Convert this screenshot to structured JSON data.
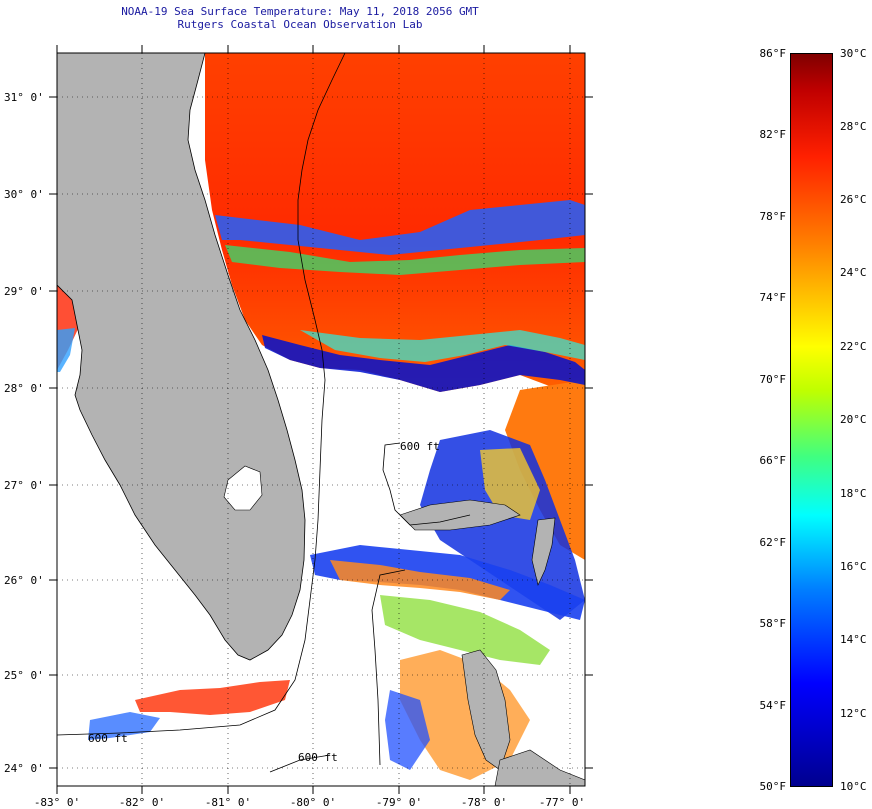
{
  "title": {
    "line1": "NOAA-19 Sea Surface Temperature:  May 11, 2018 2056 GMT",
    "line2": "Rutgers Coastal Ocean Observation Lab"
  },
  "map": {
    "lat_labels": [
      "31° 0'",
      "30° 0'",
      "29° 0'",
      "28° 0'",
      "27° 0'",
      "26° 0'",
      "25° 0'",
      "24° 0'"
    ],
    "lon_labels": [
      "-83° 0'",
      "-82° 0'",
      "-81° 0'",
      "-80° 0'",
      "-79° 0'",
      "-78° 0'",
      "-77° 0'"
    ],
    "isobath_labels": [
      "600 ft",
      "600 ft",
      "600 ft"
    ],
    "land_color": "#b3b3b3",
    "cloud_color": "#ffffff",
    "warm_water_color": "#ff3a00"
  },
  "colorbar": {
    "fahrenheit": [
      "86°F",
      "82°F",
      "78°F",
      "74°F",
      "70°F",
      "66°F",
      "62°F",
      "58°F",
      "54°F",
      "50°F"
    ],
    "celsius": [
      "30°C",
      "28°C",
      "26°C",
      "24°C",
      "22°C",
      "20°C",
      "18°C",
      "16°C",
      "14°C",
      "12°C",
      "10°C"
    ]
  }
}
